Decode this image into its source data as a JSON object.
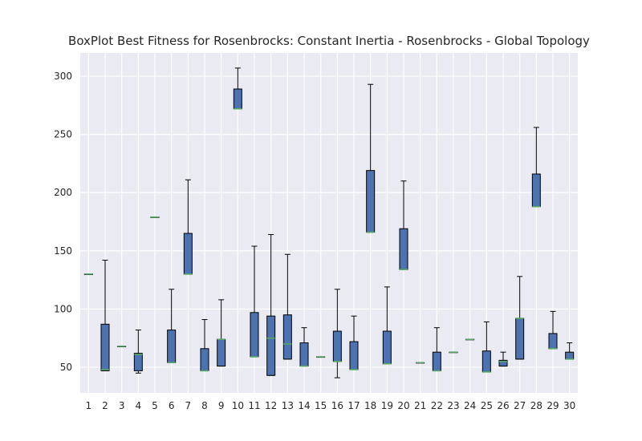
{
  "chart_data": {
    "type": "box",
    "title": "BoxPlot Best Fitness for Rosenbrocks: Constant Inertia - Rosenbrocks - Global Topology",
    "xlabel": "",
    "ylabel": "",
    "ylim": [
      28,
      320
    ],
    "yticks": [
      50,
      100,
      150,
      200,
      250,
      300
    ],
    "grid": true,
    "colors": {
      "background": "#eaeaf2",
      "grid": "#ffffff",
      "box_fill": "#4c72b0",
      "median": "#55a868",
      "outline": "#000000"
    },
    "categories": [
      "1",
      "2",
      "3",
      "4",
      "5",
      "6",
      "7",
      "8",
      "9",
      "10",
      "11",
      "12",
      "13",
      "14",
      "15",
      "16",
      "17",
      "18",
      "19",
      "20",
      "21",
      "22",
      "23",
      "24",
      "25",
      "26",
      "27",
      "28",
      "29",
      "30"
    ],
    "boxes": [
      {
        "label": "1",
        "whislo": 130,
        "q1": 130,
        "med": 130,
        "q3": 130,
        "whishi": 130
      },
      {
        "label": "2",
        "whislo": 47,
        "q1": 47,
        "med": 48,
        "q3": 87,
        "whishi": 142
      },
      {
        "label": "3",
        "whislo": 68,
        "q1": 68,
        "med": 68,
        "q3": 68,
        "whishi": 68
      },
      {
        "label": "4",
        "whislo": 45,
        "q1": 47,
        "med": 61,
        "q3": 62,
        "whishi": 82
      },
      {
        "label": "5",
        "whislo": 179,
        "q1": 179,
        "med": 179,
        "q3": 179,
        "whishi": 179
      },
      {
        "label": "6",
        "whislo": 54,
        "q1": 54,
        "med": 54,
        "q3": 82,
        "whishi": 117
      },
      {
        "label": "7",
        "whislo": 130,
        "q1": 130,
        "med": 130,
        "q3": 165,
        "whishi": 211
      },
      {
        "label": "8",
        "whislo": 47,
        "q1": 47,
        "med": 47,
        "q3": 66,
        "whishi": 91
      },
      {
        "label": "9",
        "whislo": 51,
        "q1": 51,
        "med": 74,
        "q3": 74,
        "whishi": 108
      },
      {
        "label": "10",
        "whislo": 272,
        "q1": 272,
        "med": 272,
        "q3": 289,
        "whishi": 307
      },
      {
        "label": "11",
        "whislo": 59,
        "q1": 59,
        "med": 59,
        "q3": 97,
        "whishi": 154
      },
      {
        "label": "12",
        "whislo": 43,
        "q1": 43,
        "med": 75,
        "q3": 94,
        "whishi": 164
      },
      {
        "label": "13",
        "whislo": 57,
        "q1": 57,
        "med": 70,
        "q3": 95,
        "whishi": 147
      },
      {
        "label": "14",
        "whislo": 51,
        "q1": 51,
        "med": 51,
        "q3": 71,
        "whishi": 84
      },
      {
        "label": "15",
        "whislo": 59,
        "q1": 59,
        "med": 59,
        "q3": 59,
        "whishi": 59
      },
      {
        "label": "16",
        "whislo": 41,
        "q1": 55,
        "med": 55,
        "q3": 81,
        "whishi": 117
      },
      {
        "label": "17",
        "whislo": 48,
        "q1": 48,
        "med": 48,
        "q3": 72,
        "whishi": 94
      },
      {
        "label": "18",
        "whislo": 166,
        "q1": 166,
        "med": 166,
        "q3": 219,
        "whishi": 293
      },
      {
        "label": "19",
        "whislo": 53,
        "q1": 53,
        "med": 53,
        "q3": 81,
        "whishi": 119
      },
      {
        "label": "20",
        "whislo": 134,
        "q1": 134,
        "med": 134,
        "q3": 169,
        "whishi": 210
      },
      {
        "label": "21",
        "whislo": 54,
        "q1": 54,
        "med": 54,
        "q3": 54,
        "whishi": 54
      },
      {
        "label": "22",
        "whislo": 47,
        "q1": 47,
        "med": 47,
        "q3": 63,
        "whishi": 84
      },
      {
        "label": "23",
        "whislo": 63,
        "q1": 63,
        "med": 63,
        "q3": 63,
        "whishi": 63
      },
      {
        "label": "24",
        "whislo": 74,
        "q1": 74,
        "med": 74,
        "q3": 74,
        "whishi": 74
      },
      {
        "label": "25",
        "whislo": 46,
        "q1": 46,
        "med": 46,
        "q3": 64,
        "whishi": 89
      },
      {
        "label": "26",
        "whislo": 51,
        "q1": 51,
        "med": 55,
        "q3": 56,
        "whishi": 63
      },
      {
        "label": "27",
        "whislo": 57,
        "q1": 57,
        "med": 92,
        "q3": 92,
        "whishi": 128
      },
      {
        "label": "28",
        "whislo": 188,
        "q1": 188,
        "med": 188,
        "q3": 216,
        "whishi": 256
      },
      {
        "label": "29",
        "whislo": 66,
        "q1": 66,
        "med": 66,
        "q3": 79,
        "whishi": 98
      },
      {
        "label": "30",
        "whislo": 57,
        "q1": 57,
        "med": 57,
        "q3": 63,
        "whishi": 71
      }
    ]
  }
}
